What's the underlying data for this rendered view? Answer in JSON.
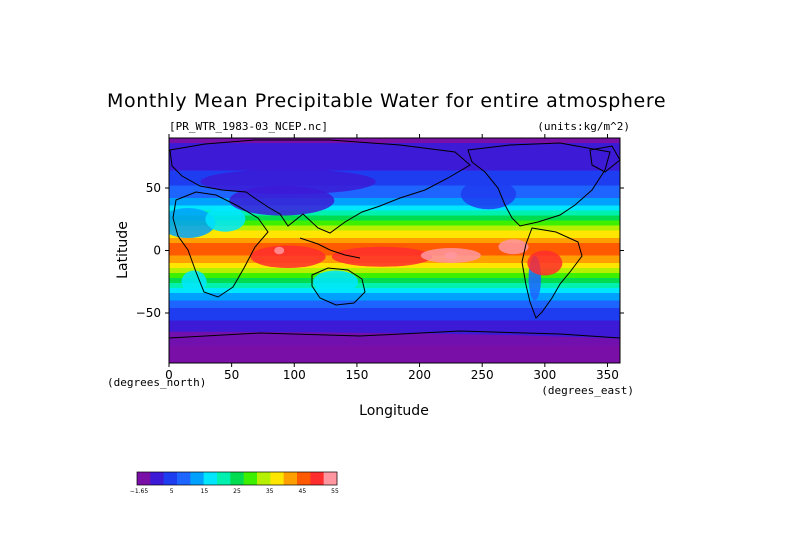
{
  "title": "Monthly Mean Precipitable Water for entire atmosphere",
  "source_file": "[PR_WTR_1983-03_NCEP.nc]",
  "units": "(units:kg/m^2)",
  "colors": {
    "levels": [
      "#7a0fa8",
      "#3c1ad6",
      "#1e3cf0",
      "#1e64ff",
      "#00a0ff",
      "#00e6ff",
      "#00f0b0",
      "#00dc50",
      "#3cf000",
      "#b4f000",
      "#ffe600",
      "#ffa000",
      "#ff5a00",
      "#ff2d2d",
      "#ff96a0"
    ],
    "land_outline": "#000000"
  },
  "chart_data": {
    "type": "heatmap",
    "field": "Monthly Mean Precipitable Water for entire atmosphere",
    "units": "kg/m^2",
    "xlabel": "Longitude",
    "ylabel": "Latitude",
    "x_unit_label": "(degrees_east)",
    "y_unit_label": "(degrees_north)",
    "xlim": [
      0,
      360
    ],
    "ylim": [
      -90,
      90
    ],
    "x_ticks": [
      0,
      50,
      100,
      150,
      200,
      250,
      300,
      350
    ],
    "y_ticks": [
      50,
      0,
      -50
    ],
    "x_tick_labels": [
      "0",
      "50",
      "100",
      "150",
      "200",
      "250",
      "300",
      "350"
    ],
    "y_tick_labels": [
      "50",
      "0",
      "−50"
    ],
    "colorbar_ticks": [
      "−1.65",
      "5",
      "15",
      "25",
      "35",
      "45",
      "55"
    ],
    "zonal_profile": {
      "lat": [
        90,
        80,
        70,
        60,
        50,
        40,
        30,
        20,
        10,
        5,
        0,
        -5,
        -10,
        -20,
        -30,
        -40,
        -50,
        -60,
        -70,
        -80,
        -90
      ],
      "value": [
        2,
        3,
        5,
        8,
        11,
        16,
        25,
        35,
        44,
        48,
        50,
        47,
        43,
        33,
        22,
        14,
        9,
        5,
        3,
        2,
        1
      ]
    }
  }
}
